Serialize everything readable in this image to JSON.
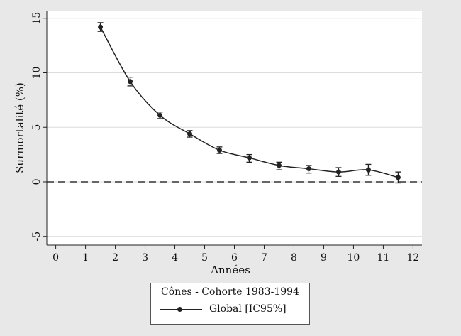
{
  "chart_data": {
    "type": "line",
    "title": "",
    "xlabel": "Années",
    "ylabel": "Surmortalité (%)",
    "xlim": [
      -0.3,
      12.3
    ],
    "ylim": [
      -5.8,
      15.7
    ],
    "x_ticks": [
      0,
      1,
      2,
      3,
      4,
      5,
      6,
      7,
      8,
      9,
      10,
      11,
      12
    ],
    "y_ticks": [
      -5,
      0,
      5,
      10,
      15
    ],
    "reference_line": {
      "y": 0,
      "style": "dashed"
    },
    "grid": "horizontal",
    "legend": {
      "title": "Cônes - Cohorte 1983-1994",
      "placement": "below"
    },
    "series": [
      {
        "name": "Global [IC95%]",
        "x": [
          1.5,
          2.5,
          3.5,
          4.5,
          5.5,
          6.5,
          7.5,
          8.5,
          9.5,
          10.5,
          11.5
        ],
        "values": [
          14.2,
          9.2,
          6.1,
          4.4,
          2.9,
          2.2,
          1.5,
          1.2,
          0.9,
          1.1,
          0.4
        ],
        "ci_low": [
          13.8,
          8.8,
          5.8,
          4.1,
          2.6,
          1.8,
          1.1,
          0.8,
          0.5,
          0.6,
          -0.1
        ],
        "ci_high": [
          14.6,
          9.6,
          6.4,
          4.7,
          3.2,
          2.5,
          1.8,
          1.5,
          1.3,
          1.6,
          0.9
        ]
      }
    ]
  }
}
